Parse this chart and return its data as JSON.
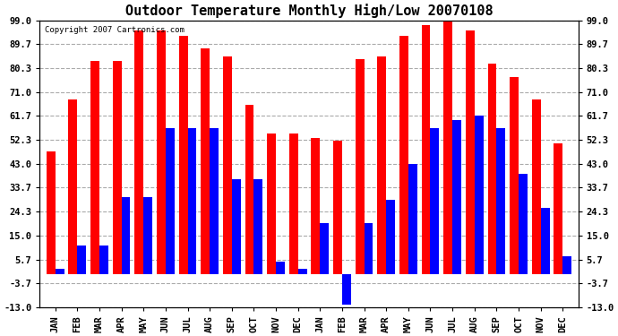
{
  "title": "Outdoor Temperature Monthly High/Low 20070108",
  "copyright": "Copyright 2007 Cartronics.com",
  "months_2007": [
    "JAN",
    "FEB",
    "MAR",
    "APR",
    "MAY",
    "JUN",
    "JUL",
    "AUG",
    "SEP",
    "OCT",
    "NOV",
    "DEC"
  ],
  "months_2008": [
    "JAN",
    "FEB",
    "MAR",
    "APR",
    "MAY",
    "JUN",
    "JUL",
    "AUG",
    "SEP",
    "OCT",
    "NOV",
    "DEC"
  ],
  "highs_2007": [
    48,
    68,
    83,
    83,
    95,
    95,
    93,
    88,
    85,
    66,
    55,
    55
  ],
  "lows_2007": [
    2,
    11,
    11,
    30,
    30,
    57,
    57,
    57,
    37,
    37,
    5,
    2
  ],
  "highs_2008": [
    53,
    52,
    84,
    85,
    93,
    97,
    99,
    95,
    82,
    77,
    68,
    51
  ],
  "lows_2008": [
    20,
    -12,
    20,
    29,
    43,
    57,
    60,
    62,
    57,
    39,
    26,
    7
  ],
  "yticks": [
    99.0,
    89.7,
    80.3,
    71.0,
    61.7,
    52.3,
    43.0,
    33.7,
    24.3,
    15.0,
    5.7,
    -3.7,
    -13.0
  ],
  "ylim": [
    -13.0,
    99.0
  ],
  "bar_width": 0.4,
  "high_color": "#FF0000",
  "low_color": "#0000FF",
  "background_color": "#FFFFFF",
  "grid_color": "#AAAAAA",
  "title_fontsize": 11,
  "tick_fontsize": 7.5
}
